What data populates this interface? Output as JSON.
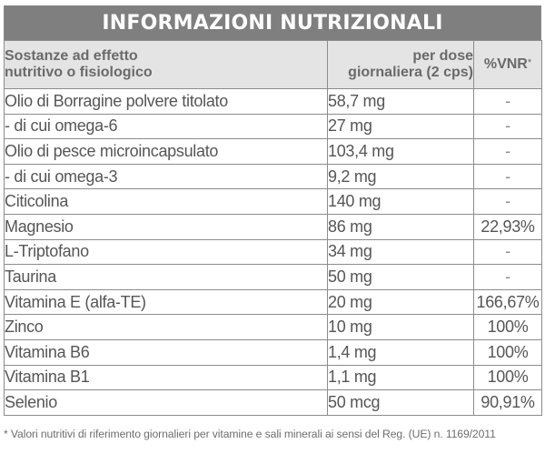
{
  "title": "INFORMAZIONI NUTRIZIONALI",
  "headers": {
    "name_line1": "Sostanze ad effetto",
    "name_line2": "nutritivo o fisiologico",
    "dose_line1": "per dose",
    "dose_line2": "giornaliera (2 cps)",
    "vnr": "%VNR",
    "vnr_mark": "*"
  },
  "rows": [
    {
      "name": "Olio di Borragine polvere titolato",
      "dose": "58,7 mg",
      "vnr": "-"
    },
    {
      "name": "- di cui omega-6",
      "dose": "27 mg",
      "vnr": "-"
    },
    {
      "name": "Olio di pesce microincapsulato",
      "dose": "103,4 mg",
      "vnr": "-"
    },
    {
      "name": "- di cui omega-3",
      "dose": "9,2 mg",
      "vnr": "-"
    },
    {
      "name": "Citicolina",
      "dose": "140 mg",
      "vnr": "-"
    },
    {
      "name": "Magnesio",
      "dose": "86 mg",
      "vnr": "22,93%"
    },
    {
      "name": "L-Triptofano",
      "dose": "34 mg",
      "vnr": "-"
    },
    {
      "name": "Taurina",
      "dose": "50 mg",
      "vnr": "-"
    },
    {
      "name": "Vitamina E (alfa-TE)",
      "dose": "20 mg",
      "vnr": "166,67%"
    },
    {
      "name": "Zinco",
      "dose": "10 mg",
      "vnr": "100%"
    },
    {
      "name": "Vitamina B6",
      "dose": "1,4 mg",
      "vnr": "100%"
    },
    {
      "name": "Vitamina B1",
      "dose": "1,1 mg",
      "vnr": "100%"
    },
    {
      "name": "Selenio",
      "dose": "50 mcg",
      "vnr": "90,91%"
    }
  ],
  "footnote": "* Valori nutritivi di riferimento giornalieri per vitamine e sali minerali ai sensi del Reg. (UE) n. 1169/2011",
  "colors": {
    "title_bg": "#7f7f80",
    "header_bg": "#e4e4e4",
    "border": "#8c8c8c",
    "text": "#565656"
  }
}
